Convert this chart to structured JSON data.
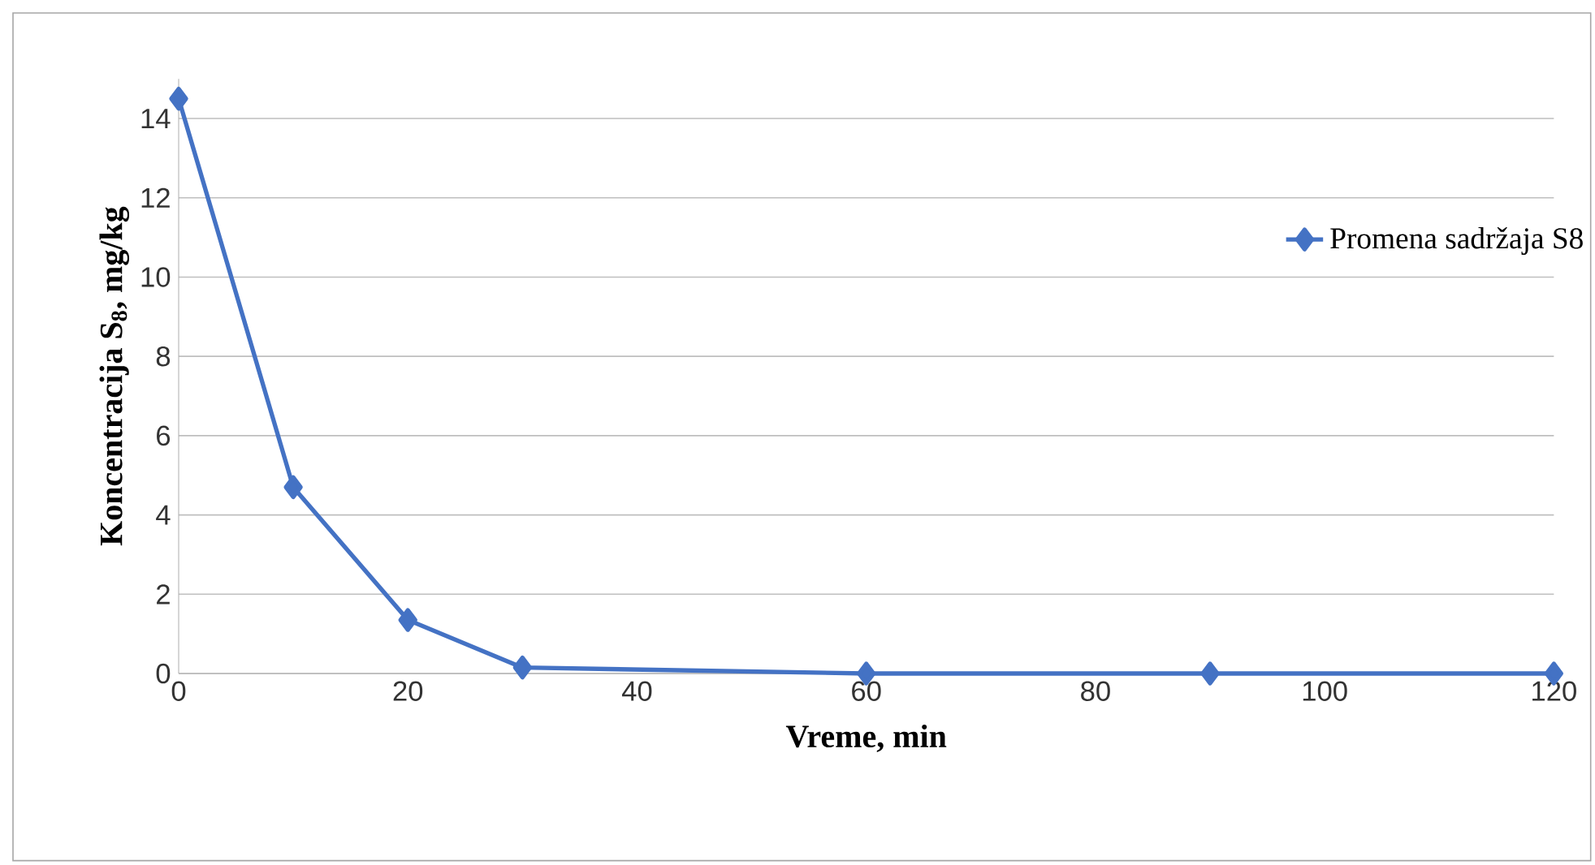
{
  "chart_data": {
    "type": "line",
    "xlabel": "Vreme, min",
    "ylabel": "Koncentracija S$_{8}$, mg/kg",
    "x": [
      0,
      10,
      20,
      30,
      60,
      90,
      120
    ],
    "series": [
      {
        "name": "Promena sadržaja S8",
        "color": "#4472c4",
        "values": [
          14.5,
          4.7,
          1.35,
          0.15,
          0,
          0,
          0
        ]
      }
    ],
    "xlim": [
      0,
      120
    ],
    "ylim": [
      0,
      15
    ],
    "xticks": [
      0,
      20,
      40,
      60,
      80,
      100,
      120
    ],
    "yticks": [
      0,
      2,
      4,
      6,
      8,
      10,
      12,
      14
    ],
    "grid": "y",
    "legend": "right",
    "marker": "diamond",
    "line_style": "solid"
  }
}
